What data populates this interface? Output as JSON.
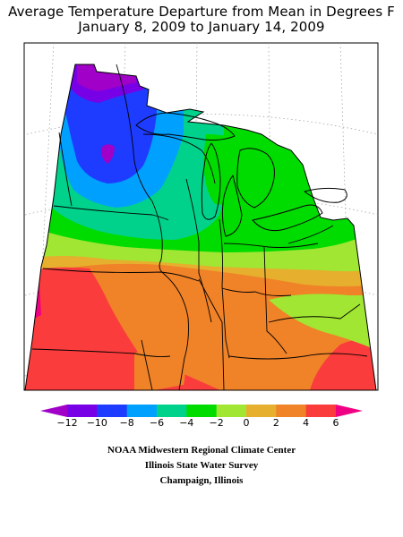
{
  "title": {
    "line1": "Average Temperature Departure from Mean in Degrees F",
    "line2": "January 8, 2009 to January 14, 2009"
  },
  "colors": {
    "lt_-12": "#a000c8",
    "-12_-10": "#7800e6",
    "-10_-8": "#1e3cff",
    "-8_-6": "#00a0ff",
    "-6_-4": "#00d28c",
    "-4_-2": "#00dc00",
    "-2_0": "#a0e632",
    "0_2": "#e6af2d",
    "2_4": "#f08228",
    "4_6": "#fa3c3c",
    "gt_6": "#f00082",
    "no_data": "#ffffff",
    "boundaries": "#000000",
    "graticule": "#999999"
  },
  "legend": {
    "ticks": [
      "−12",
      "−10",
      "−8",
      "−6",
      "−4",
      "−2",
      "0",
      "2",
      "4",
      "6"
    ]
  },
  "credits": {
    "line1": "NOAA Midwestern Regional Climate Center",
    "line2": "Illinois State Water Survey",
    "line3": "Champaign, Illinois"
  }
}
